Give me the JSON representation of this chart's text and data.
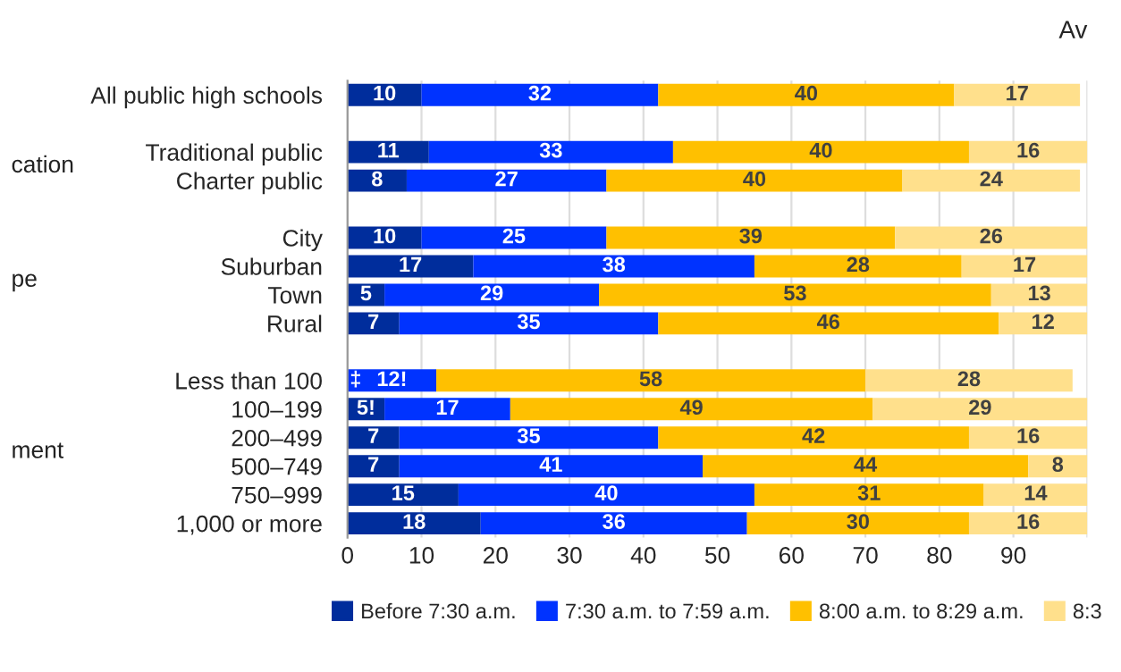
{
  "chart_data": {
    "type": "bar",
    "orientation": "horizontal",
    "stacked": true,
    "title": "Av",
    "categories": [
      "All public high schools",
      null,
      "Traditional public",
      "Charter public",
      null,
      "City",
      "Suburban",
      "Town",
      "Rural",
      null,
      "Less than 100",
      "100–199",
      "200–499",
      "500–749",
      "750–999",
      "1,000 or more"
    ],
    "series": [
      {
        "name": "Before 7:30 a.m.",
        "color": "#002d9c",
        "values": [
          10,
          null,
          11,
          8,
          null,
          10,
          17,
          5,
          7,
          null,
          null,
          5,
          7,
          7,
          15,
          18
        ],
        "value_labels": [
          "10",
          null,
          "11",
          "8",
          null,
          "10",
          "17",
          "5",
          "7",
          null,
          "‡",
          "5!",
          "7",
          "7",
          "15",
          "18"
        ]
      },
      {
        "name": "7:30 a.m. to 7:59 a.m.",
        "color": "#0033ff",
        "values": [
          32,
          null,
          33,
          27,
          null,
          25,
          38,
          29,
          35,
          null,
          12,
          17,
          35,
          41,
          40,
          36
        ],
        "value_labels": [
          "32",
          null,
          "33",
          "27",
          null,
          "25",
          "38",
          "29",
          "35",
          null,
          "12!",
          "17",
          "35",
          "41",
          "40",
          "36"
        ]
      },
      {
        "name": "8:00 a.m. to 8:29 a.m.",
        "color": "#ffc000",
        "values": [
          40,
          null,
          40,
          40,
          null,
          39,
          28,
          53,
          46,
          null,
          58,
          49,
          42,
          44,
          31,
          30
        ],
        "value_labels": [
          "40",
          null,
          "40",
          "40",
          null,
          "39",
          "28",
          "53",
          "46",
          null,
          "58",
          "49",
          "42",
          "44",
          "31",
          "30"
        ]
      },
      {
        "name": "8:3",
        "color": "#ffe08c",
        "values": [
          17,
          null,
          16,
          24,
          null,
          26,
          17,
          13,
          12,
          null,
          28,
          29,
          16,
          8,
          14,
          16
        ],
        "value_labels": [
          "17",
          null,
          "16",
          "24",
          null,
          "26",
          "17",
          "13",
          "12",
          null,
          "28",
          "29",
          "16",
          "8",
          "14",
          "16"
        ]
      }
    ],
    "annotations": [
      "cation",
      "pe",
      "ment"
    ],
    "xlim": [
      0,
      100
    ],
    "xticks": [
      0,
      10,
      20,
      30,
      40,
      50,
      60,
      70,
      80,
      90,
      {
        "value": 100,
        "label": null
      }
    ],
    "grid": "x",
    "legend": "bottom"
  }
}
